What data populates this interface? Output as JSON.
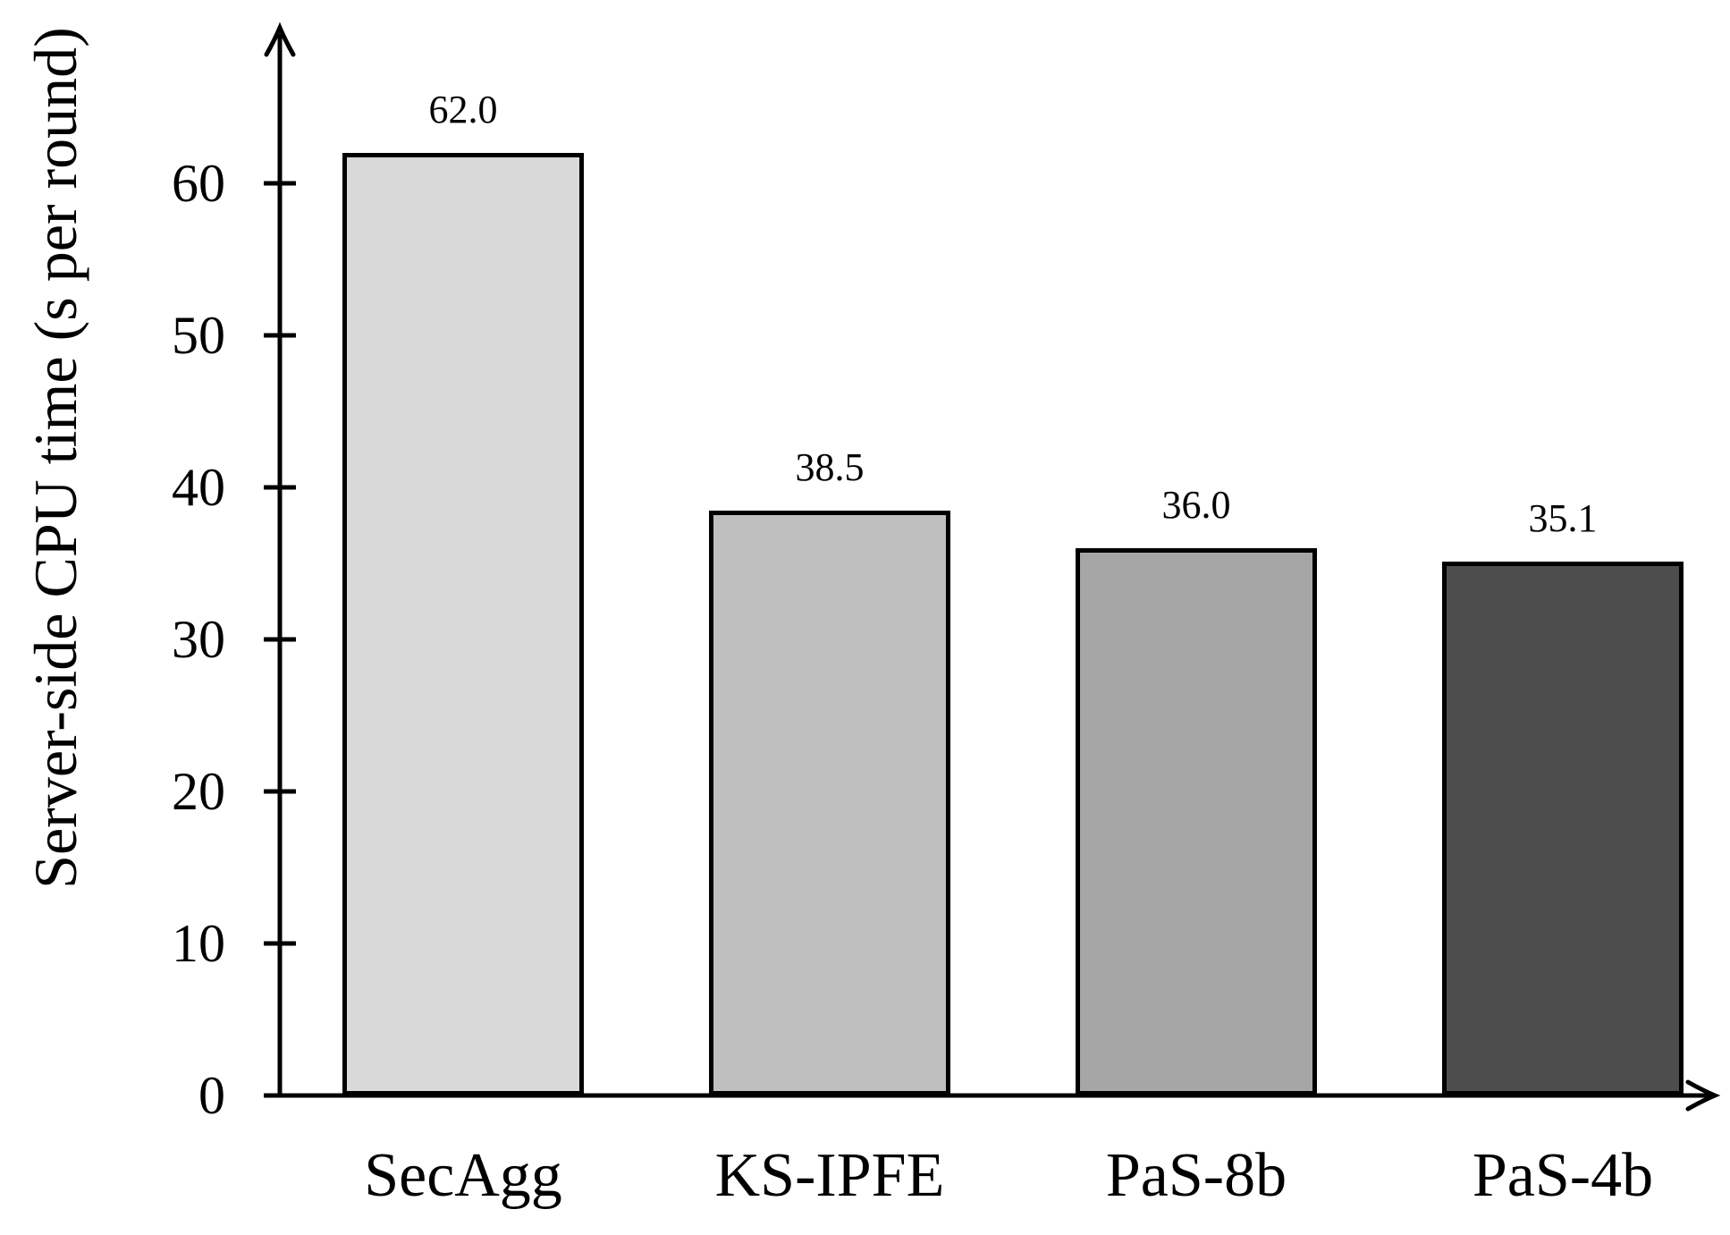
{
  "chart_data": {
    "type": "bar",
    "title": "",
    "xlabel": "",
    "ylabel": "Server-side CPU time (s per round)",
    "categories": [
      "SecAgg",
      "KS-IPFE",
      "PaS-8b",
      "PaS-4b"
    ],
    "values": [
      62.0,
      38.5,
      36.0,
      35.1
    ],
    "value_labels": [
      "62.0",
      "38.5",
      "36.0",
      "35.1"
    ],
    "bar_fill_colors": [
      "#d9d9d9",
      "#bfbfbf",
      "#a6a6a6",
      "#4d4d4d"
    ],
    "bar_border_color": "#000000",
    "axis_color": "#000000",
    "yticks": [
      0,
      10,
      20,
      30,
      40,
      50,
      60
    ],
    "ytick_labels": [
      "0",
      "10",
      "20",
      "30",
      "40",
      "50",
      "60"
    ],
    "ylim": [
      0,
      68
    ],
    "grid": false,
    "legend": null,
    "background_color": "#ffffff"
  }
}
